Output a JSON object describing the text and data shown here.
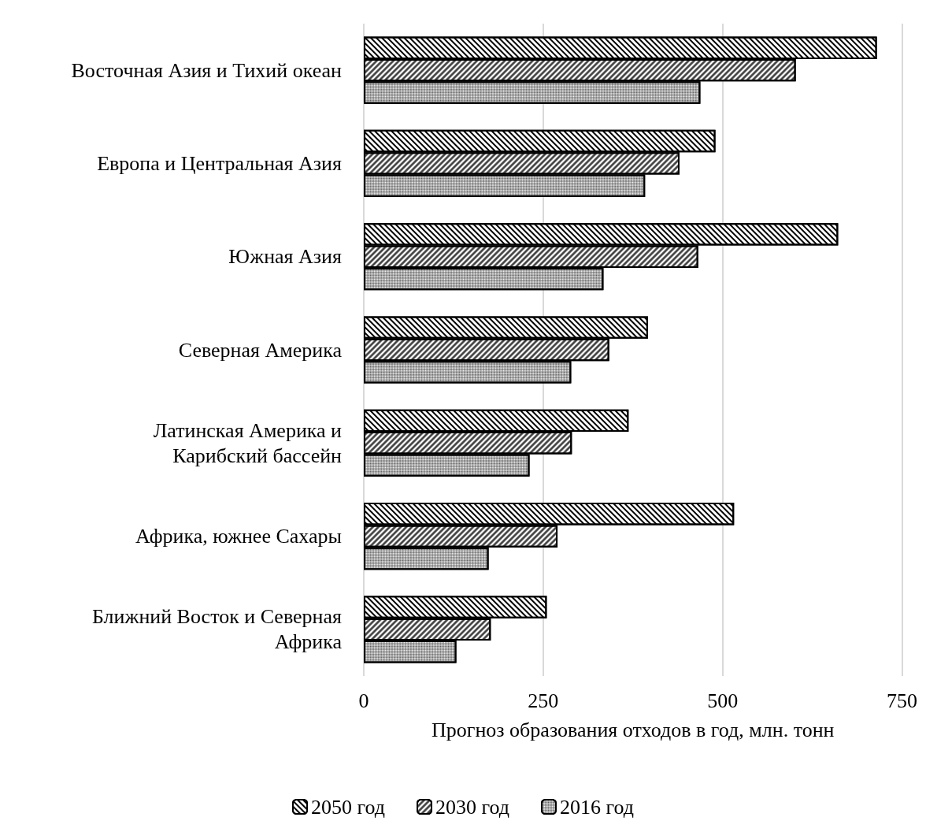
{
  "chart_data": {
    "type": "bar",
    "orientation": "horizontal",
    "xlabel": "Прогноз образования отходов в год, млн. тонн",
    "categories": [
      "Восточная Азия и Тихий океан",
      "Европа и Центральная Азия",
      "Южная Азия",
      "Северная Америка",
      "Латинская Америка и\nКарибский бассейн",
      "Африка, южнее Сахары",
      "Ближний Восток и Северная\nАфрика"
    ],
    "series": [
      {
        "name": "2050 год",
        "color": "#ffffff",
        "values": [
          715,
          490,
          661,
          396,
          369,
          516,
          255
        ]
      },
      {
        "name": "2030 год",
        "color": "#ffffff",
        "values": [
          602,
          440,
          466,
          342,
          290,
          270,
          177
        ]
      },
      {
        "name": "2016 год",
        "color": "#ffffff",
        "values": [
          469,
          392,
          334,
          289,
          231,
          174,
          129
        ]
      }
    ],
    "xlim": [
      0,
      750
    ],
    "xticks": [
      0,
      250,
      500,
      750
    ],
    "grid": "x",
    "legend": "bottom"
  }
}
